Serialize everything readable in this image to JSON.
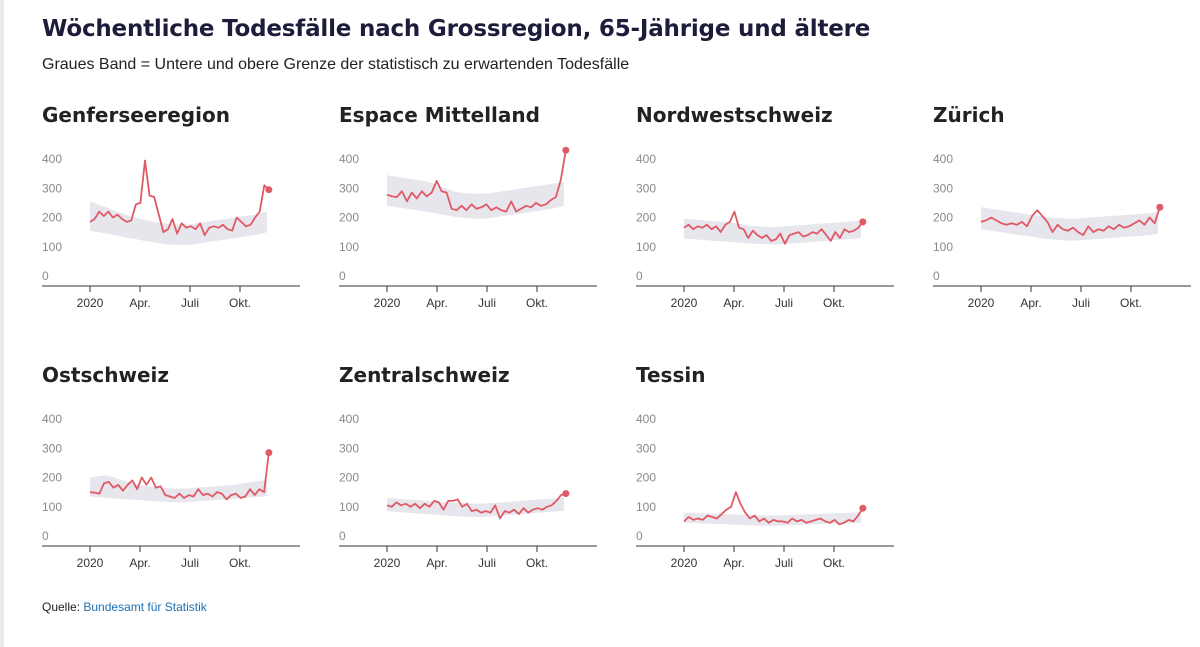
{
  "header": {
    "title": "Wöchentliche Todesfälle nach Grossregion, 65-Jährige und ältere",
    "subtitle": "Graues Band = Untere und obere Grenze der statistisch zu erwartenden Todesfälle"
  },
  "source": {
    "label": "Quelle:",
    "link_text": "Bundesamt für Statistik"
  },
  "colors": {
    "line": "#e05a66",
    "band": "#e6e6ec",
    "axis": "#333333"
  },
  "chart_data": [
    {
      "type": "line",
      "title": "Genferseeregion",
      "y_ticks": [
        0,
        100,
        200,
        300,
        400
      ],
      "x_ticks": [
        {
          "label": "2020",
          "week": 1
        },
        {
          "label": "Apr.",
          "week": 14
        },
        {
          "label": "Juli",
          "week": 27
        },
        {
          "label": "Okt.",
          "week": 40
        }
      ],
      "x_range": [
        1,
        53
      ],
      "ylim": [
        0,
        400
      ],
      "band_lower": [
        155,
        152,
        150,
        148,
        146,
        144,
        140,
        138,
        135,
        132,
        130,
        128,
        125,
        122,
        120,
        118,
        115,
        113,
        111,
        110,
        108,
        107,
        106,
        106,
        106,
        107,
        108,
        110,
        112,
        114,
        116,
        118,
        120,
        122,
        124,
        126,
        128,
        130,
        132,
        134,
        136,
        138,
        140,
        143,
        146,
        150
      ],
      "band_upper": [
        255,
        250,
        245,
        240,
        235,
        230,
        225,
        220,
        215,
        210,
        206,
        202,
        198,
        195,
        192,
        189,
        186,
        184,
        182,
        180,
        178,
        177,
        176,
        176,
        176,
        177,
        178,
        180,
        182,
        184,
        186,
        188,
        190,
        192,
        194,
        196,
        198,
        200,
        202,
        204,
        206,
        208,
        210,
        213,
        216,
        220
      ],
      "values": [
        185,
        195,
        220,
        205,
        220,
        200,
        210,
        195,
        185,
        190,
        245,
        250,
        395,
        275,
        270,
        210,
        150,
        160,
        195,
        145,
        180,
        165,
        170,
        160,
        180,
        140,
        165,
        170,
        165,
        175,
        160,
        155,
        200,
        185,
        170,
        175,
        200,
        220,
        310,
        295
      ]
    },
    {
      "type": "line",
      "title": "Espace Mittelland",
      "y_ticks": [
        0,
        100,
        200,
        300,
        400
      ],
      "x_ticks": [
        {
          "label": "2020",
          "week": 1
        },
        {
          "label": "Apr.",
          "week": 14
        },
        {
          "label": "Juli",
          "week": 27
        },
        {
          "label": "Okt.",
          "week": 40
        }
      ],
      "x_range": [
        1,
        53
      ],
      "ylim": [
        0,
        400
      ],
      "band_lower": [
        240,
        238,
        236,
        234,
        232,
        230,
        228,
        226,
        224,
        222,
        220,
        218,
        215,
        212,
        210,
        208,
        205,
        203,
        201,
        200,
        198,
        197,
        196,
        196,
        196,
        197,
        198,
        200,
        202,
        204,
        206,
        208,
        210,
        212,
        214,
        216,
        218,
        220,
        222,
        224,
        226,
        228,
        230,
        233,
        236,
        240
      ],
      "band_upper": [
        345,
        342,
        340,
        338,
        336,
        334,
        332,
        330,
        328,
        326,
        324,
        320,
        315,
        310,
        305,
        300,
        295,
        290,
        287,
        285,
        283,
        282,
        281,
        281,
        281,
        282,
        283,
        285,
        287,
        289,
        291,
        293,
        295,
        297,
        299,
        301,
        303,
        305,
        307,
        309,
        311,
        313,
        315,
        317,
        319,
        320
      ],
      "values": [
        278,
        272,
        270,
        290,
        255,
        285,
        265,
        290,
        272,
        285,
        325,
        290,
        285,
        230,
        225,
        240,
        225,
        245,
        230,
        235,
        245,
        225,
        235,
        225,
        220,
        255,
        220,
        230,
        240,
        235,
        250,
        240,
        245,
        260,
        270,
        330,
        430
      ]
    },
    {
      "type": "line",
      "title": "Nordwestschweiz",
      "y_ticks": [
        0,
        100,
        200,
        300,
        400
      ],
      "x_ticks": [
        {
          "label": "2020",
          "week": 1
        },
        {
          "label": "Apr.",
          "week": 14
        },
        {
          "label": "Juli",
          "week": 27
        },
        {
          "label": "Okt.",
          "week": 40
        }
      ],
      "x_range": [
        1,
        53
      ],
      "ylim": [
        0,
        400
      ],
      "band_lower": [
        128,
        127,
        126,
        125,
        124,
        123,
        122,
        121,
        120,
        119,
        118,
        117,
        116,
        115,
        114,
        113,
        112,
        111,
        110,
        110,
        109,
        109,
        108,
        108,
        108,
        109,
        110,
        111,
        112,
        113,
        114,
        115,
        116,
        117,
        118,
        119,
        120,
        121,
        122,
        123,
        124,
        125,
        126,
        127,
        128,
        130
      ],
      "band_upper": [
        195,
        194,
        193,
        192,
        191,
        190,
        189,
        188,
        187,
        186,
        185,
        184,
        182,
        180,
        178,
        176,
        174,
        172,
        171,
        170,
        169,
        168,
        168,
        168,
        168,
        169,
        170,
        171,
        172,
        173,
        174,
        175,
        176,
        177,
        178,
        179,
        180,
        181,
        182,
        183,
        184,
        185,
        186,
        187,
        188,
        190
      ],
      "values": [
        165,
        175,
        160,
        170,
        165,
        175,
        160,
        170,
        150,
        175,
        185,
        220,
        165,
        160,
        130,
        155,
        140,
        130,
        140,
        120,
        125,
        145,
        110,
        140,
        145,
        150,
        135,
        140,
        150,
        145,
        160,
        140,
        120,
        150,
        130,
        160,
        150,
        155,
        165,
        185
      ]
    },
    {
      "type": "line",
      "title": "Zürich",
      "y_ticks": [
        0,
        100,
        200,
        300,
        400
      ],
      "x_ticks": [
        {
          "label": "2020",
          "week": 1
        },
        {
          "label": "Apr.",
          "week": 14
        },
        {
          "label": "Juli",
          "week": 27
        },
        {
          "label": "Okt.",
          "week": 40
        }
      ],
      "x_range": [
        1,
        53
      ],
      "ylim": [
        0,
        400
      ],
      "band_lower": [
        160,
        158,
        156,
        154,
        152,
        150,
        148,
        146,
        144,
        142,
        140,
        138,
        136,
        134,
        132,
        130,
        128,
        126,
        125,
        124,
        123,
        122,
        121,
        121,
        121,
        122,
        123,
        124,
        125,
        126,
        127,
        128,
        129,
        130,
        131,
        132,
        133,
        134,
        135,
        136,
        137,
        138,
        139,
        140,
        142,
        145
      ],
      "band_upper": [
        235,
        233,
        231,
        229,
        227,
        225,
        223,
        221,
        219,
        217,
        215,
        213,
        211,
        209,
        207,
        205,
        203,
        201,
        200,
        199,
        198,
        197,
        196,
        196,
        196,
        197,
        198,
        199,
        200,
        201,
        202,
        203,
        204,
        205,
        206,
        207,
        208,
        209,
        210,
        211,
        212,
        213,
        214,
        215,
        217,
        220
      ],
      "values": [
        185,
        190,
        200,
        190,
        180,
        175,
        180,
        175,
        185,
        170,
        205,
        225,
        205,
        185,
        150,
        175,
        160,
        155,
        165,
        150,
        140,
        170,
        150,
        160,
        155,
        170,
        160,
        175,
        165,
        170,
        180,
        190,
        175,
        200,
        180,
        235
      ]
    },
    {
      "type": "line",
      "title": "Ostschweiz",
      "y_ticks": [
        0,
        100,
        200,
        300,
        400
      ],
      "x_ticks": [
        {
          "label": "2020",
          "week": 1
        },
        {
          "label": "Apr.",
          "week": 14
        },
        {
          "label": "Juli",
          "week": 27
        },
        {
          "label": "Okt.",
          "week": 40
        }
      ],
      "x_range": [
        1,
        53
      ],
      "ylim": [
        0,
        400
      ],
      "band_lower": [
        135,
        134,
        133,
        132,
        131,
        130,
        129,
        128,
        127,
        126,
        125,
        124,
        123,
        122,
        121,
        120,
        119,
        118,
        117,
        117,
        116,
        116,
        115,
        115,
        115,
        116,
        117,
        118,
        119,
        120,
        121,
        122,
        123,
        124,
        125,
        126,
        127,
        128,
        129,
        130,
        131,
        132,
        133,
        134,
        135,
        136
      ],
      "band_upper": [
        200,
        202,
        204,
        206,
        208,
        205,
        200,
        196,
        192,
        188,
        184,
        180,
        177,
        174,
        172,
        170,
        168,
        166,
        165,
        164,
        163,
        162,
        162,
        162,
        162,
        163,
        164,
        165,
        166,
        167,
        168,
        169,
        170,
        171,
        172,
        173,
        174,
        176,
        178,
        180,
        182,
        184,
        186,
        188,
        190,
        192
      ],
      "values": [
        150,
        148,
        145,
        180,
        185,
        165,
        175,
        155,
        175,
        190,
        160,
        200,
        175,
        200,
        165,
        170,
        140,
        135,
        130,
        145,
        130,
        140,
        135,
        160,
        140,
        145,
        135,
        150,
        145,
        125,
        140,
        145,
        130,
        135,
        160,
        140,
        160,
        150,
        285
      ]
    },
    {
      "type": "line",
      "title": "Zentralschweiz",
      "y_ticks": [
        0,
        100,
        200,
        300,
        400
      ],
      "x_ticks": [
        {
          "label": "2020",
          "week": 1
        },
        {
          "label": "Apr.",
          "week": 14
        },
        {
          "label": "Juli",
          "week": 27
        },
        {
          "label": "Okt.",
          "week": 40
        }
      ],
      "x_range": [
        1,
        53
      ],
      "ylim": [
        0,
        400
      ],
      "band_lower": [
        85,
        84,
        83,
        82,
        81,
        80,
        79,
        78,
        77,
        76,
        75,
        74,
        73,
        72,
        71,
        70,
        69,
        68,
        67,
        67,
        66,
        66,
        65,
        65,
        65,
        66,
        67,
        68,
        69,
        70,
        71,
        72,
        73,
        74,
        75,
        76,
        77,
        78,
        79,
        80,
        81,
        82,
        83,
        84,
        85,
        86
      ],
      "band_upper": [
        130,
        129,
        128,
        127,
        126,
        125,
        124,
        123,
        122,
        121,
        120,
        119,
        118,
        117,
        116,
        115,
        114,
        113,
        112,
        112,
        111,
        111,
        110,
        110,
        110,
        111,
        112,
        113,
        114,
        115,
        116,
        117,
        118,
        119,
        120,
        121,
        122,
        123,
        124,
        125,
        126,
        127,
        128,
        129,
        130,
        132
      ],
      "values": [
        105,
        100,
        115,
        105,
        110,
        100,
        110,
        95,
        110,
        100,
        120,
        115,
        90,
        120,
        120,
        125,
        100,
        110,
        85,
        90,
        80,
        85,
        80,
        105,
        60,
        85,
        80,
        90,
        75,
        95,
        80,
        90,
        95,
        90,
        100,
        105,
        120,
        140,
        145
      ]
    },
    {
      "type": "line",
      "title": "Tessin",
      "y_ticks": [
        0,
        100,
        200,
        300,
        400
      ],
      "x_ticks": [
        {
          "label": "2020",
          "week": 1
        },
        {
          "label": "Apr.",
          "week": 14
        },
        {
          "label": "Juli",
          "week": 27
        },
        {
          "label": "Okt.",
          "week": 40
        }
      ],
      "x_range": [
        1,
        53
      ],
      "ylim": [
        0,
        400
      ],
      "band_lower": [
        45,
        45,
        44,
        44,
        43,
        43,
        42,
        42,
        41,
        41,
        40,
        40,
        39,
        39,
        38,
        38,
        37,
        37,
        36,
        36,
        36,
        35,
        35,
        35,
        35,
        36,
        36,
        37,
        37,
        38,
        38,
        39,
        39,
        40,
        40,
        41,
        41,
        42,
        42,
        43,
        43,
        44,
        44,
        45,
        45,
        46
      ],
      "band_upper": [
        80,
        80,
        79,
        79,
        78,
        78,
        77,
        77,
        76,
        76,
        75,
        75,
        74,
        74,
        73,
        73,
        72,
        72,
        71,
        71,
        71,
        70,
        70,
        70,
        70,
        71,
        71,
        72,
        72,
        73,
        73,
        74,
        74,
        75,
        75,
        76,
        76,
        77,
        77,
        78,
        78,
        79,
        79,
        80,
        80,
        81
      ],
      "values": [
        50,
        65,
        55,
        60,
        55,
        70,
        65,
        60,
        75,
        90,
        100,
        150,
        110,
        80,
        60,
        70,
        50,
        60,
        45,
        55,
        50,
        50,
        45,
        60,
        50,
        55,
        45,
        50,
        55,
        60,
        50,
        45,
        55,
        40,
        45,
        55,
        50,
        70,
        95
      ]
    }
  ]
}
